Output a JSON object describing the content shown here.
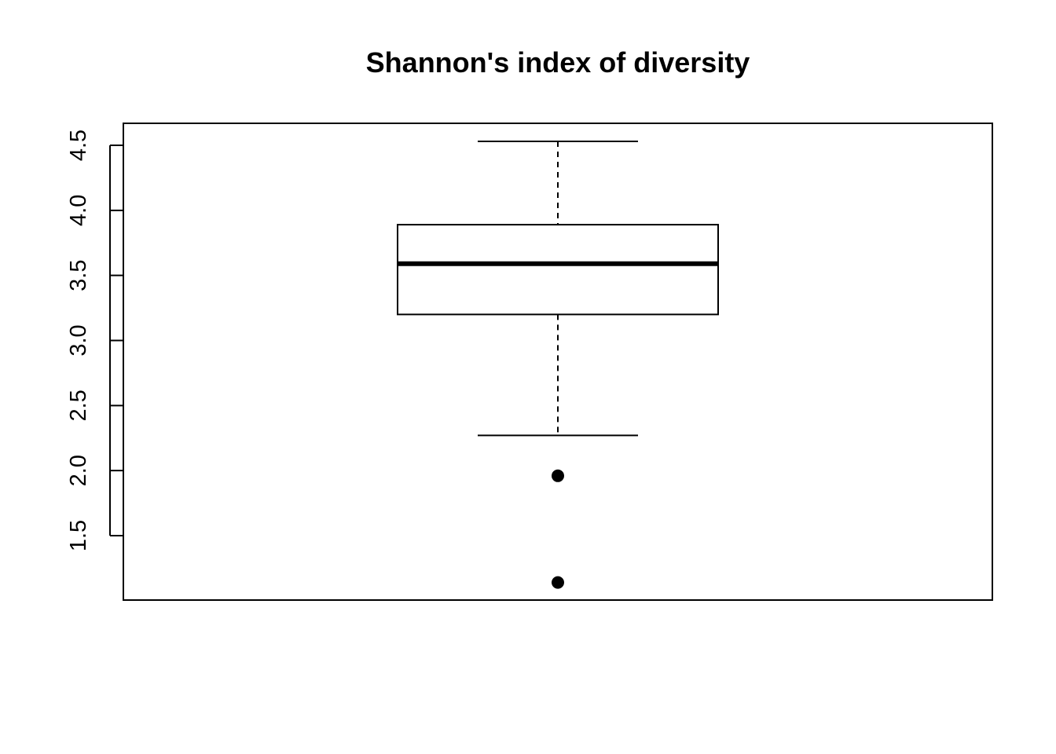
{
  "chart_data": {
    "type": "boxplot",
    "title": "Shannon's index of diversity",
    "xlabel": "",
    "ylabel": "",
    "ylim": [
      1.0,
      4.67
    ],
    "y_ticks": [
      1.5,
      2.0,
      2.5,
      3.0,
      3.5,
      4.0,
      4.5
    ],
    "y_tick_labels": [
      "1.5",
      "2.0",
      "2.5",
      "3.0",
      "3.5",
      "4.0",
      "4.5"
    ],
    "boxes": [
      {
        "whisker_low": 2.27,
        "q1": 3.2,
        "median": 3.59,
        "q3": 3.89,
        "whisker_high": 4.53,
        "outliers": [
          1.96,
          1.14
        ]
      }
    ],
    "grid": false,
    "legend": "none"
  }
}
